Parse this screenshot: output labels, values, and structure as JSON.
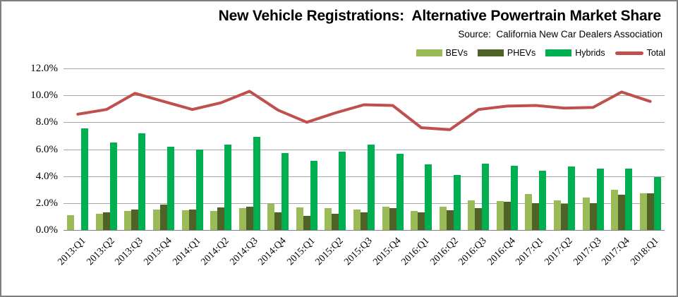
{
  "chart": {
    "title": "New Vehicle Registrations:  Alternative Powertrain Market Share",
    "source": "Source:  California New Car Dealers Association"
  },
  "colors": {
    "bevs": "#9BBB59",
    "phevs": "#4F6228",
    "hybrids": "#00B050",
    "total": "#C0504D",
    "gridline": "#A6A6A6",
    "axis": "#808080",
    "border": "#7F7F7F"
  },
  "chart_data": {
    "type": "bar",
    "note": "grouped bars with overlaid line series",
    "title": "New Vehicle Registrations:  Alternative Powertrain Market Share",
    "xlabel": "",
    "ylabel": "",
    "ylim": [
      0,
      12
    ],
    "ytick_labels": [
      "0.0%",
      "2.0%",
      "4.0%",
      "6.0%",
      "8.0%",
      "10.0%",
      "12.0%"
    ],
    "grid": true,
    "legend_position": "top-right",
    "categories": [
      "2013:Q1",
      "2013:Q2",
      "2013:Q3",
      "2013:Q4",
      "2014:Q1",
      "2014:Q2",
      "2014:Q3",
      "2014:Q4",
      "2015:Q1",
      "2015:Q2",
      "2015:Q3",
      "2015:Q4",
      "2016:Q1",
      "2016:Q2",
      "2016:Q3",
      "2016:Q4",
      "2017:Q1",
      "2017:Q2",
      "2017:Q3",
      "2017:Q4",
      "2018:Q1"
    ],
    "series": [
      {
        "name": "BEVs",
        "type": "bar",
        "color": "#9BBB59",
        "values": [
          1.1,
          1.2,
          1.4,
          1.5,
          1.45,
          1.4,
          1.6,
          1.95,
          1.7,
          1.6,
          1.5,
          1.75,
          1.4,
          1.75,
          2.2,
          2.15,
          2.65,
          2.2,
          2.4,
          3.0,
          2.75
        ]
      },
      {
        "name": "PHEVs",
        "type": "bar",
        "color": "#4F6228",
        "values": [
          0,
          1.3,
          1.5,
          1.9,
          1.5,
          1.7,
          1.75,
          1.3,
          1.05,
          1.2,
          1.3,
          1.65,
          1.3,
          1.45,
          1.65,
          2.1,
          2.0,
          1.95,
          2.0,
          2.6,
          2.7
        ]
      },
      {
        "name": "Hybrids",
        "type": "bar",
        "color": "#00B050",
        "values": [
          7.55,
          6.5,
          7.2,
          6.2,
          6.0,
          6.35,
          6.9,
          5.7,
          5.15,
          5.8,
          6.35,
          5.65,
          4.85,
          4.1,
          4.95,
          4.75,
          4.4,
          4.7,
          4.55,
          4.55,
          3.95
        ]
      },
      {
        "name": "Total",
        "type": "line",
        "color": "#C0504D",
        "values": [
          8.6,
          8.95,
          10.15,
          9.55,
          8.95,
          9.45,
          10.3,
          8.9,
          8.0,
          8.7,
          9.3,
          9.25,
          7.6,
          7.45,
          8.95,
          9.2,
          9.25,
          9.05,
          9.1,
          10.25,
          9.55
        ]
      }
    ]
  }
}
